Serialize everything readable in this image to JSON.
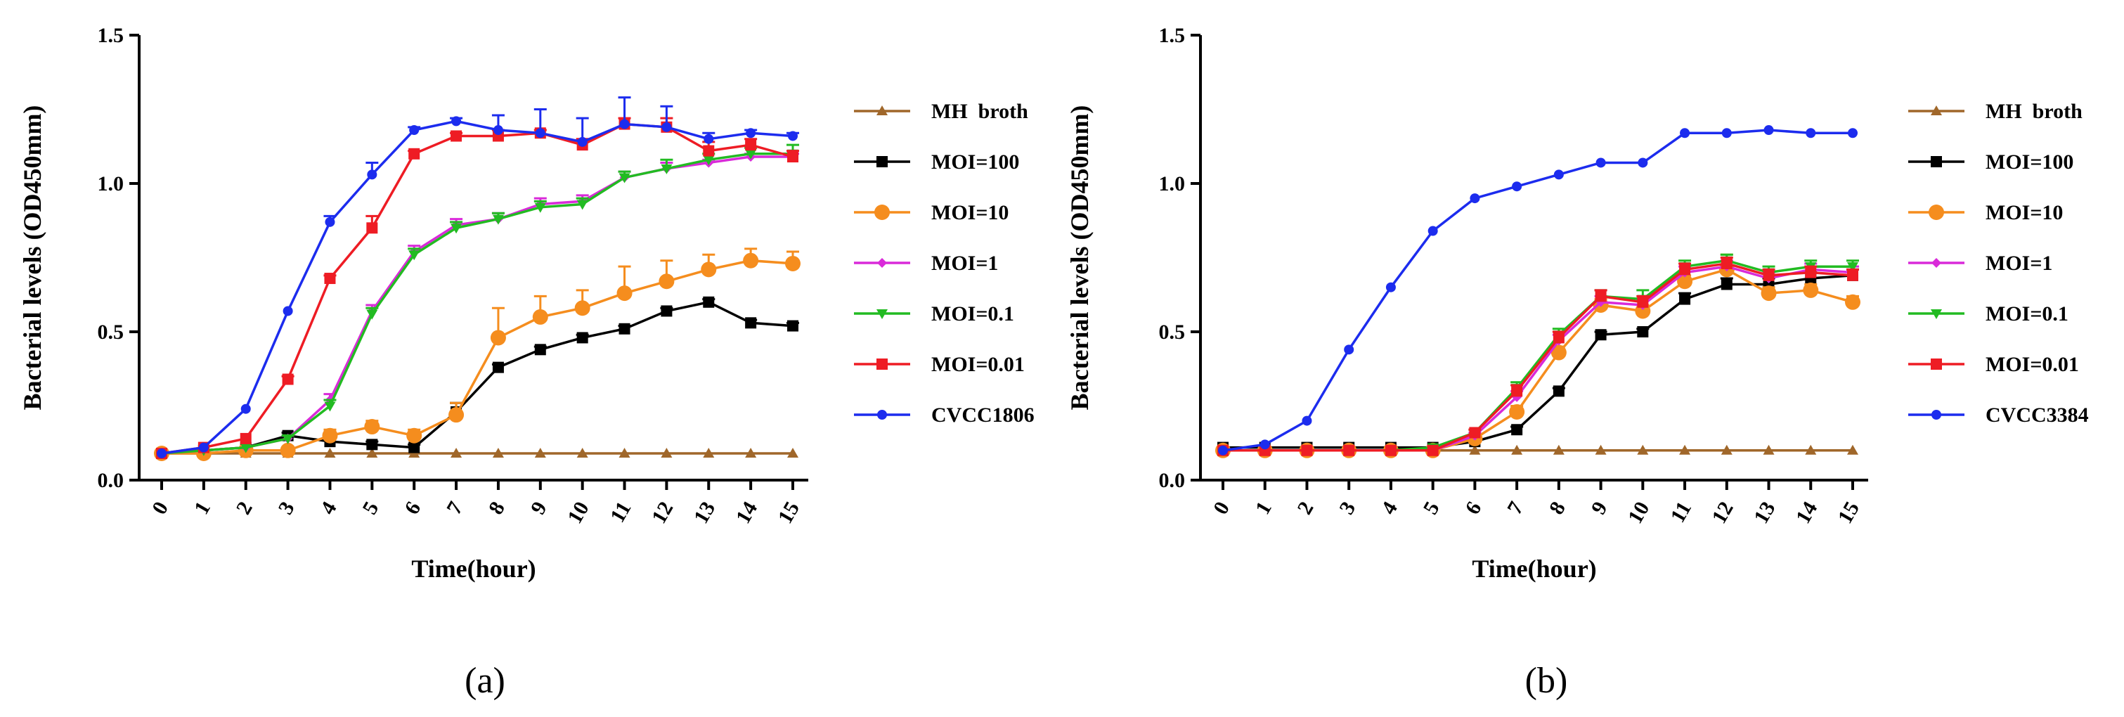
{
  "chart_data": [
    {
      "type": "line",
      "panel_label": "(a)",
      "xlabel": "Time(hour)",
      "ylabel": "Bacterial levels (OD450mm)",
      "xlim": [
        0,
        15
      ],
      "ylim": [
        0,
        1.5
      ],
      "x": [
        0,
        1,
        2,
        3,
        4,
        5,
        6,
        7,
        8,
        9,
        10,
        11,
        12,
        13,
        14,
        15
      ],
      "x_ticks": [
        "0",
        "1",
        "2",
        "3",
        "4",
        "5",
        "6",
        "7",
        "8",
        "9",
        "10",
        "11",
        "12",
        "13",
        "14",
        "15"
      ],
      "y_ticks": [
        "0.0",
        "0.5",
        "1.0",
        "1.5"
      ],
      "y_tick_values": [
        0,
        0.5,
        1.0,
        1.5
      ],
      "legend_position": "right",
      "series": [
        {
          "name": "MH  broth",
          "color": "#a0672a",
          "marker": "triangle",
          "values": [
            0.09,
            0.09,
            0.09,
            0.09,
            0.09,
            0.09,
            0.09,
            0.09,
            0.09,
            0.09,
            0.09,
            0.09,
            0.09,
            0.09,
            0.09,
            0.09
          ],
          "errors": [
            0,
            0,
            0,
            0,
            0,
            0,
            0,
            0,
            0,
            0,
            0,
            0,
            0,
            0,
            0,
            0
          ]
        },
        {
          "name": "MOI=100",
          "color": "#000000",
          "marker": "square",
          "values": [
            0.09,
            0.1,
            0.11,
            0.15,
            0.13,
            0.12,
            0.11,
            0.23,
            0.38,
            0.44,
            0.48,
            0.51,
            0.57,
            0.6,
            0.53,
            0.52
          ],
          "errors": [
            0,
            0,
            0,
            0.01,
            0.01,
            0.01,
            0.01,
            0.03,
            0.01,
            0.01,
            0.01,
            0.01,
            0.01,
            0.01,
            0.01,
            0.01
          ]
        },
        {
          "name": "MOI=10",
          "color": "#f58d1e",
          "marker": "circle",
          "values": [
            0.09,
            0.09,
            0.1,
            0.1,
            0.15,
            0.18,
            0.15,
            0.22,
            0.48,
            0.55,
            0.58,
            0.63,
            0.67,
            0.71,
            0.74,
            0.73
          ],
          "errors": [
            0,
            0,
            0,
            0.01,
            0.02,
            0.02,
            0.02,
            0.04,
            0.1,
            0.07,
            0.06,
            0.09,
            0.07,
            0.05,
            0.04,
            0.04
          ]
        },
        {
          "name": "MOI=1",
          "color": "#d92ad9",
          "marker": "diamond",
          "values": [
            0.09,
            0.1,
            0.11,
            0.14,
            0.27,
            0.57,
            0.77,
            0.86,
            0.88,
            0.93,
            0.94,
            1.02,
            1.05,
            1.07,
            1.09,
            1.09
          ],
          "errors": [
            0,
            0,
            0,
            0.01,
            0.02,
            0.02,
            0.02,
            0.02,
            0.02,
            0.02,
            0.02,
            0.02,
            0.02,
            0.01,
            0.01,
            0.01
          ]
        },
        {
          "name": "MOI=0.1",
          "color": "#22bb22",
          "marker": "triangle-down",
          "values": [
            0.09,
            0.1,
            0.11,
            0.14,
            0.25,
            0.56,
            0.76,
            0.85,
            0.88,
            0.92,
            0.93,
            1.02,
            1.05,
            1.08,
            1.1,
            1.1
          ],
          "errors": [
            0,
            0,
            0,
            0.01,
            0.02,
            0.02,
            0.02,
            0.02,
            0.02,
            0.02,
            0.02,
            0.02,
            0.03,
            0.02,
            0.02,
            0.03
          ]
        },
        {
          "name": "MOI=0.01",
          "color": "#ee1c24",
          "marker": "square",
          "values": [
            0.09,
            0.11,
            0.14,
            0.34,
            0.68,
            0.85,
            1.1,
            1.16,
            1.16,
            1.17,
            1.13,
            1.2,
            1.19,
            1.11,
            1.13,
            1.09
          ],
          "errors": [
            0,
            0,
            0,
            0.01,
            0.01,
            0.04,
            0.01,
            0.01,
            0.02,
            0.01,
            0.02,
            0.02,
            0.03,
            0.03,
            0.02,
            0.02
          ]
        },
        {
          "name": "CVCC1806",
          "color": "#1c2cee",
          "marker": "circle-small",
          "values": [
            0.09,
            0.11,
            0.24,
            0.57,
            0.87,
            1.03,
            1.18,
            1.21,
            1.18,
            1.17,
            1.14,
            1.2,
            1.19,
            1.15,
            1.17,
            1.16
          ],
          "errors": [
            0,
            0,
            0,
            0,
            0.02,
            0.04,
            0.01,
            0.01,
            0.05,
            0.08,
            0.08,
            0.09,
            0.07,
            0.02,
            0.01,
            0.01
          ]
        }
      ]
    },
    {
      "type": "line",
      "panel_label": "(b)",
      "xlabel": "Time(hour)",
      "ylabel": "Bacterial levels (OD450mm)",
      "xlim": [
        0,
        15
      ],
      "ylim": [
        0,
        1.5
      ],
      "x": [
        0,
        1,
        2,
        3,
        4,
        5,
        6,
        7,
        8,
        9,
        10,
        11,
        12,
        13,
        14,
        15
      ],
      "x_ticks": [
        "0",
        "1",
        "2",
        "3",
        "4",
        "5",
        "6",
        "7",
        "8",
        "9",
        "10",
        "11",
        "12",
        "13",
        "14",
        "15"
      ],
      "y_ticks": [
        "0.0",
        "0.5",
        "1.0",
        "1.5"
      ],
      "y_tick_values": [
        0,
        0.5,
        1.0,
        1.5
      ],
      "legend_position": "right",
      "series": [
        {
          "name": "MH  broth",
          "color": "#a0672a",
          "marker": "triangle",
          "values": [
            0.1,
            0.1,
            0.1,
            0.1,
            0.1,
            0.1,
            0.1,
            0.1,
            0.1,
            0.1,
            0.1,
            0.1,
            0.1,
            0.1,
            0.1,
            0.1
          ],
          "errors": [
            0,
            0,
            0,
            0,
            0,
            0,
            0,
            0,
            0,
            0,
            0,
            0,
            0,
            0,
            0,
            0
          ]
        },
        {
          "name": "MOI=100",
          "color": "#000000",
          "marker": "square",
          "values": [
            0.11,
            0.11,
            0.11,
            0.11,
            0.11,
            0.11,
            0.13,
            0.17,
            0.3,
            0.49,
            0.5,
            0.61,
            0.66,
            0.66,
            0.68,
            0.69
          ],
          "errors": [
            0,
            0,
            0,
            0,
            0,
            0,
            0.01,
            0.01,
            0.01,
            0.01,
            0.01,
            0.02,
            0.02,
            0.02,
            0.02,
            0.02
          ]
        },
        {
          "name": "MOI=10",
          "color": "#f58d1e",
          "marker": "circle",
          "values": [
            0.1,
            0.1,
            0.1,
            0.1,
            0.1,
            0.1,
            0.14,
            0.23,
            0.43,
            0.59,
            0.57,
            0.67,
            0.71,
            0.63,
            0.64,
            0.6
          ],
          "errors": [
            0,
            0,
            0,
            0,
            0,
            0,
            0.01,
            0.02,
            0.02,
            0.02,
            0.02,
            0.02,
            0.05,
            0.02,
            0.02,
            0.02
          ]
        },
        {
          "name": "MOI=1",
          "color": "#d92ad9",
          "marker": "diamond",
          "values": [
            0.1,
            0.1,
            0.1,
            0.1,
            0.1,
            0.1,
            0.15,
            0.28,
            0.47,
            0.6,
            0.59,
            0.7,
            0.72,
            0.68,
            0.71,
            0.7
          ],
          "errors": [
            0,
            0,
            0,
            0,
            0,
            0,
            0.01,
            0.02,
            0.02,
            0.02,
            0.02,
            0.02,
            0.02,
            0.02,
            0.02,
            0.02
          ]
        },
        {
          "name": "MOI=0.1",
          "color": "#22bb22",
          "marker": "triangle-down",
          "values": [
            0.1,
            0.1,
            0.1,
            0.1,
            0.1,
            0.11,
            0.16,
            0.31,
            0.49,
            0.62,
            0.61,
            0.72,
            0.74,
            0.7,
            0.72,
            0.72
          ],
          "errors": [
            0,
            0,
            0,
            0,
            0,
            0,
            0.01,
            0.02,
            0.02,
            0.02,
            0.03,
            0.02,
            0.02,
            0.02,
            0.02,
            0.02
          ]
        },
        {
          "name": "MOI=0.01",
          "color": "#ee1c24",
          "marker": "square",
          "values": [
            0.1,
            0.1,
            0.1,
            0.1,
            0.1,
            0.1,
            0.16,
            0.3,
            0.48,
            0.62,
            0.6,
            0.71,
            0.73,
            0.69,
            0.7,
            0.69
          ],
          "errors": [
            0,
            0,
            0,
            0,
            0,
            0,
            0.01,
            0.02,
            0.02,
            0.02,
            0.02,
            0.02,
            0.02,
            0.02,
            0.02,
            0.02
          ]
        },
        {
          "name": "CVCC3384",
          "color": "#1c2cee",
          "marker": "circle-small",
          "values": [
            0.1,
            0.12,
            0.2,
            0.44,
            0.65,
            0.84,
            0.95,
            0.99,
            1.03,
            1.07,
            1.07,
            1.17,
            1.17,
            1.18,
            1.17,
            1.17
          ],
          "errors": [
            0,
            0,
            0,
            0,
            0,
            0,
            0,
            0,
            0,
            0,
            0,
            0,
            0,
            0,
            0,
            0
          ]
        }
      ]
    }
  ]
}
